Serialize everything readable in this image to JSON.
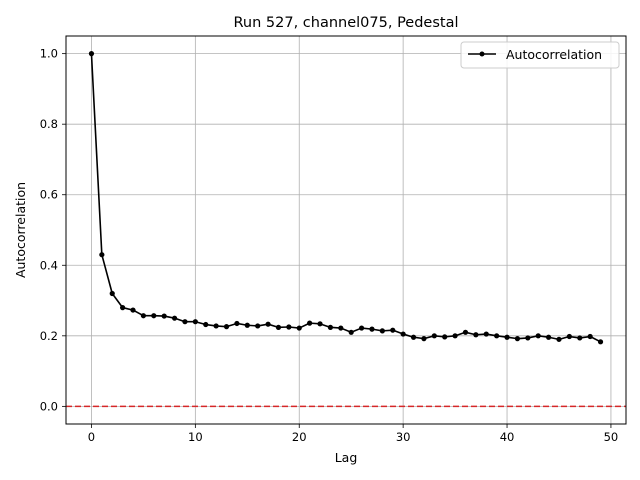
{
  "chart_data": {
    "type": "line",
    "title": "Run 527, channel075, Pedestal",
    "xlabel": "Lag",
    "ylabel": "Autocorrelation",
    "xlim": [
      -2.45,
      51.45
    ],
    "ylim": [
      -0.05,
      1.05
    ],
    "xticks": [
      0,
      10,
      20,
      30,
      40,
      50
    ],
    "yticks": [
      0.0,
      0.2,
      0.4,
      0.6,
      0.8,
      1.0
    ],
    "xtick_labels": [
      "0",
      "10",
      "20",
      "30",
      "40",
      "50"
    ],
    "ytick_labels": [
      "0.0",
      "0.2",
      "0.4",
      "0.6",
      "0.8",
      "1.0"
    ],
    "grid": true,
    "legend_position": "top-right",
    "reference_line": {
      "y": 0.0,
      "color": "#d62728",
      "style": "dashed"
    },
    "series": [
      {
        "name": "Autocorrelation",
        "color": "#000000",
        "marker": "circle",
        "x": [
          0,
          1,
          2,
          3,
          4,
          5,
          6,
          7,
          8,
          9,
          10,
          11,
          12,
          13,
          14,
          15,
          16,
          17,
          18,
          19,
          20,
          21,
          22,
          23,
          24,
          25,
          26,
          27,
          28,
          29,
          30,
          31,
          32,
          33,
          34,
          35,
          36,
          37,
          38,
          39,
          40,
          41,
          42,
          43,
          44,
          45,
          46,
          47,
          48,
          49
        ],
        "values": [
          1.0,
          0.43,
          0.32,
          0.28,
          0.273,
          0.257,
          0.257,
          0.256,
          0.25,
          0.24,
          0.24,
          0.232,
          0.228,
          0.226,
          0.235,
          0.23,
          0.228,
          0.233,
          0.224,
          0.225,
          0.222,
          0.236,
          0.234,
          0.224,
          0.222,
          0.21,
          0.222,
          0.219,
          0.214,
          0.216,
          0.205,
          0.196,
          0.192,
          0.2,
          0.197,
          0.2,
          0.21,
          0.203,
          0.205,
          0.2,
          0.196,
          0.192,
          0.194,
          0.2,
          0.196,
          0.19,
          0.198,
          0.194,
          0.198,
          0.183
        ]
      }
    ]
  }
}
